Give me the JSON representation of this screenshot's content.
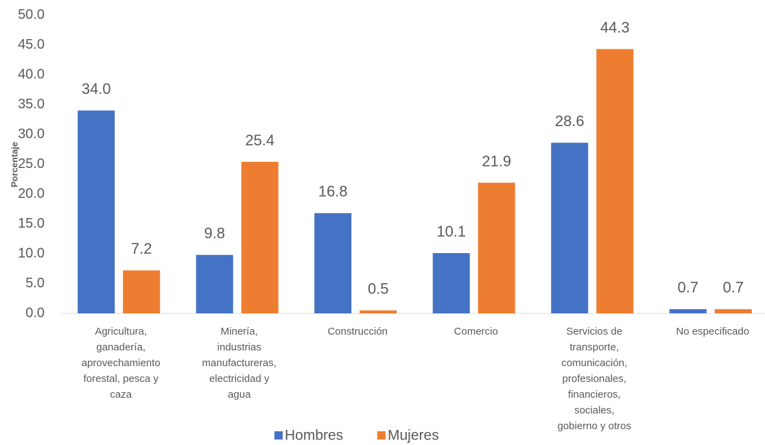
{
  "chart_data": {
    "type": "bar",
    "y_label": "Porcentaje",
    "categories": [
      "Agricultura,\nganadería,\naprovechamiento\nforestal, pesca y\ncaza",
      "Minería,\nindustrias\nmanufactureras,\nelectricidad y\nagua",
      "Construcción",
      "Comercio",
      "Servicios de\ntransporte,\ncomunicación,\nprofesionales,\nfinancieros,\nsociales,\ngobierno y otros",
      "No especificado"
    ],
    "series": [
      {
        "name": "Hombres",
        "color": "#4472c4",
        "values": [
          34.0,
          9.8,
          16.8,
          10.1,
          28.6,
          0.7
        ],
        "value_labels": [
          "34.0",
          "9.8",
          "16.8",
          "10.1",
          "28.6",
          "0.7"
        ]
      },
      {
        "name": "Mujeres",
        "color": "#ed7d31",
        "values": [
          7.2,
          25.4,
          0.5,
          21.9,
          44.3,
          0.7
        ],
        "value_labels": [
          "7.2",
          "25.4",
          "0.5",
          "21.9",
          "44.3",
          "0.7"
        ]
      }
    ],
    "ylim": [
      0,
      50
    ],
    "yticks": [
      {
        "value": 0,
        "label": "0.0"
      },
      {
        "value": 5,
        "label": "5.0"
      },
      {
        "value": 10,
        "label": "10.0"
      },
      {
        "value": 15,
        "label": "15.0"
      },
      {
        "value": 20,
        "label": "20.0"
      },
      {
        "value": 25,
        "label": "25.0"
      },
      {
        "value": 30,
        "label": "30.0"
      },
      {
        "value": 35,
        "label": "35.0"
      },
      {
        "value": 40,
        "label": "40.0"
      },
      {
        "value": 45,
        "label": "45.0"
      },
      {
        "value": 50,
        "label": "50.0"
      }
    ],
    "legend": "bottom",
    "grid": false
  }
}
